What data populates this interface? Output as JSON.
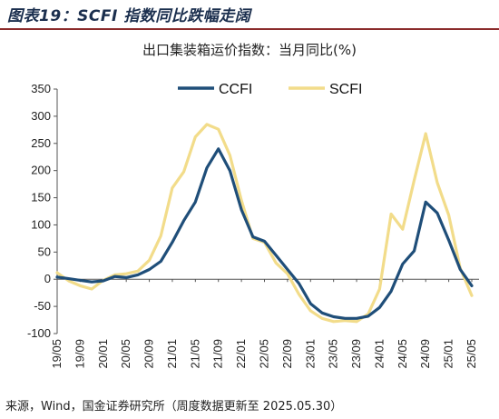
{
  "figure_title": "图表19：SCFI 指数同比跌幅走阔",
  "footer": "来源，Wind，国金证券研究所（周度数据更新至 2025.05.30）",
  "chart_data": {
    "type": "line",
    "title": "出口集装箱运价指数：当月同比(%)",
    "xlabel": "",
    "ylabel": "",
    "ylim": [
      -100,
      350
    ],
    "yticks": [
      -100,
      -50,
      0,
      50,
      100,
      150,
      200,
      250,
      300,
      350
    ],
    "xticks": [
      "19/05",
      "19/09",
      "20/01",
      "20/05",
      "20/09",
      "21/01",
      "21/05",
      "21/09",
      "22/01",
      "22/05",
      "22/09",
      "23/01",
      "23/05",
      "23/09",
      "24/01",
      "24/05",
      "24/09",
      "25/01",
      "25/05"
    ],
    "legend_position": "top",
    "grid": false,
    "x": [
      "19/05",
      "19/07",
      "19/09",
      "19/11",
      "20/01",
      "20/03",
      "20/05",
      "20/07",
      "20/09",
      "20/11",
      "21/01",
      "21/03",
      "21/05",
      "21/07",
      "21/09",
      "21/11",
      "22/01",
      "22/03",
      "22/05",
      "22/07",
      "22/09",
      "22/11",
      "23/01",
      "23/03",
      "23/05",
      "23/07",
      "23/09",
      "23/11",
      "24/01",
      "24/03",
      "24/05",
      "24/07",
      "24/09",
      "24/11",
      "25/01",
      "25/03",
      "25/05"
    ],
    "series": [
      {
        "name": "CCFI",
        "color": "#1f4e79",
        "values": [
          4,
          1,
          -2,
          -5,
          -3,
          5,
          3,
          8,
          18,
          33,
          68,
          108,
          142,
          205,
          240,
          200,
          128,
          78,
          70,
          44,
          18,
          -8,
          -45,
          -62,
          -69,
          -72,
          -72,
          -68,
          -52,
          -22,
          28,
          52,
          142,
          122,
          72,
          18,
          -12
        ]
      },
      {
        "name": "SCFI",
        "color": "#f2dc8a",
        "values": [
          12,
          -3,
          -12,
          -18,
          -2,
          8,
          10,
          15,
          35,
          80,
          168,
          198,
          262,
          285,
          276,
          228,
          145,
          75,
          68,
          30,
          10,
          -28,
          -58,
          -72,
          -78,
          -76,
          -78,
          -64,
          -18,
          120,
          92,
          182,
          268,
          178,
          118,
          20,
          -30
        ]
      }
    ]
  }
}
